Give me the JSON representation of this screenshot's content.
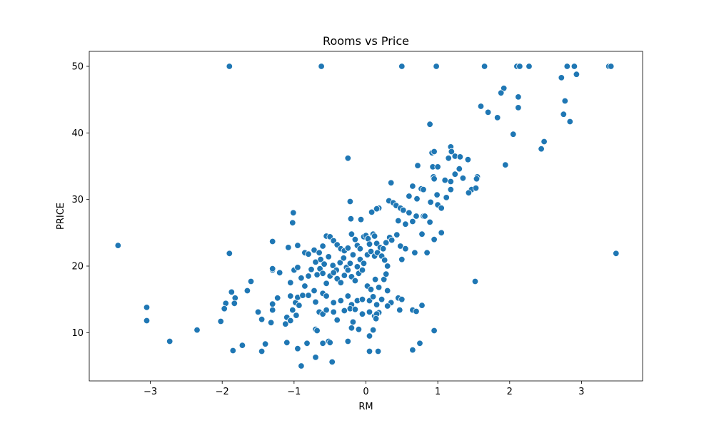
{
  "colors": {
    "point_fill": "#1f77b4",
    "point_edge": "#ffffff",
    "axes": "#000000",
    "background": "#ffffff"
  },
  "chart_data": {
    "type": "scatter",
    "title": "Rooms vs Price",
    "xlabel": "RM",
    "ylabel": "PRICE",
    "xlim": [
      -3.85,
      3.85
    ],
    "ylim": [
      2.75,
      52.25
    ],
    "xticks": [
      -3,
      -2,
      -1,
      0,
      1,
      2,
      3
    ],
    "yticks": [
      10,
      20,
      30,
      40,
      50
    ],
    "xtick_labels": [
      "−3",
      "−2",
      "−1",
      "0",
      "1",
      "2",
      "3"
    ],
    "ytick_labels": [
      "10",
      "20",
      "30",
      "40",
      "50"
    ],
    "grid": false,
    "legend": null,
    "series": [
      {
        "points": [
          [
            -1.9,
            50
          ],
          [
            -0.62,
            50
          ],
          [
            0.5,
            50
          ],
          [
            0.98,
            50
          ],
          [
            1.65,
            50
          ],
          [
            2.1,
            50
          ],
          [
            2.14,
            50
          ],
          [
            2.27,
            50
          ],
          [
            2.8,
            50
          ],
          [
            2.9,
            50
          ],
          [
            3.38,
            50
          ],
          [
            3.41,
            50
          ],
          [
            2.72,
            48.3
          ],
          [
            2.93,
            48.8
          ],
          [
            1.92,
            46.7
          ],
          [
            1.88,
            46.0
          ],
          [
            2.12,
            45.4
          ],
          [
            2.77,
            44.8
          ],
          [
            2.12,
            43.8
          ],
          [
            1.6,
            44.0
          ],
          [
            1.7,
            43.1
          ],
          [
            1.83,
            42.3
          ],
          [
            2.75,
            42.8
          ],
          [
            2.84,
            41.7
          ],
          [
            0.89,
            41.3
          ],
          [
            2.05,
            39.8
          ],
          [
            2.48,
            38.7
          ],
          [
            2.44,
            37.6
          ],
          [
            1.94,
            35.2
          ],
          [
            1.18,
            37.9
          ],
          [
            1.19,
            37.2
          ],
          [
            0.92,
            37.0
          ],
          [
            0.95,
            37.2
          ],
          [
            1.24,
            36.5
          ],
          [
            1.15,
            36.2
          ],
          [
            1.31,
            36.4
          ],
          [
            1.42,
            36.0
          ],
          [
            -0.25,
            36.2
          ],
          [
            0.72,
            35.1
          ],
          [
            0.93,
            34.9
          ],
          [
            1.0,
            34.9
          ],
          [
            1.3,
            34.6
          ],
          [
            1.24,
            33.8
          ],
          [
            1.55,
            33.4
          ],
          [
            1.54,
            33.1
          ],
          [
            1.35,
            33.2
          ],
          [
            1.1,
            32.9
          ],
          [
            0.94,
            33.4
          ],
          [
            0.95,
            33.1
          ],
          [
            1.18,
            32.7
          ],
          [
            0.35,
            32.5
          ],
          [
            0.65,
            32.0
          ],
          [
            0.77,
            31.6
          ],
          [
            0.8,
            31.5
          ],
          [
            1.47,
            31.5
          ],
          [
            1.53,
            31.7
          ],
          [
            1.43,
            31.0
          ],
          [
            1.18,
            31.5
          ],
          [
            0.6,
            30.5
          ],
          [
            0.71,
            30.1
          ],
          [
            0.99,
            30.7
          ],
          [
            0.9,
            29.6
          ],
          [
            1.12,
            30.3
          ],
          [
            0.32,
            29.8
          ],
          [
            0.38,
            29.5
          ],
          [
            0.42,
            29.1
          ],
          [
            0.48,
            28.7
          ],
          [
            0.52,
            28.4
          ],
          [
            0.6,
            28.0
          ],
          [
            0.18,
            28.7
          ],
          [
            -0.22,
            29.7
          ],
          [
            1.0,
            29.2
          ],
          [
            1.05,
            28.7
          ],
          [
            0.7,
            27.5
          ],
          [
            -1.01,
            28.0
          ],
          [
            -1.02,
            26.5
          ],
          [
            -0.21,
            27.1
          ],
          [
            -0.07,
            27.0
          ],
          [
            0.08,
            28.1
          ],
          [
            0.15,
            28.6
          ],
          [
            0.45,
            26.8
          ],
          [
            0.55,
            26.3
          ],
          [
            0.65,
            26.7
          ],
          [
            0.8,
            27.5
          ],
          [
            0.82,
            27.5
          ],
          [
            0.89,
            26.6
          ],
          [
            -1.3,
            23.7
          ],
          [
            -1.08,
            22.8
          ],
          [
            -0.95,
            23.1
          ],
          [
            -0.85,
            22.0
          ],
          [
            -0.8,
            21.8
          ],
          [
            -0.72,
            22.4
          ],
          [
            -0.65,
            22.0
          ],
          [
            -0.6,
            23.0
          ],
          [
            -0.55,
            24.5
          ],
          [
            -0.5,
            24.4
          ],
          [
            -0.45,
            23.8
          ],
          [
            -0.4,
            23.2
          ],
          [
            -0.35,
            22.6
          ],
          [
            -0.3,
            22.3
          ],
          [
            -0.25,
            22.7
          ],
          [
            -0.2,
            24.8
          ],
          [
            -0.15,
            24.0
          ],
          [
            -0.12,
            23.1
          ],
          [
            -0.08,
            22.6
          ],
          [
            -0.03,
            24.4
          ],
          [
            0.0,
            24.6
          ],
          [
            0.03,
            24.1
          ],
          [
            0.05,
            23.3
          ],
          [
            0.1,
            24.8
          ],
          [
            0.12,
            24.5
          ],
          [
            0.15,
            23.4
          ],
          [
            0.2,
            22.8
          ],
          [
            0.24,
            22.6
          ],
          [
            0.28,
            23.5
          ],
          [
            0.33,
            24.3
          ],
          [
            0.36,
            23.9
          ],
          [
            0.43,
            24.7
          ],
          [
            0.48,
            23.0
          ],
          [
            0.55,
            22.6
          ],
          [
            0.68,
            22.0
          ],
          [
            0.78,
            24.8
          ],
          [
            0.95,
            24.0
          ],
          [
            1.05,
            25.0
          ],
          [
            -0.7,
            20.6
          ],
          [
            -0.63,
            21.0
          ],
          [
            -0.58,
            20.3
          ],
          [
            -0.52,
            21.4
          ],
          [
            -0.46,
            20.1
          ],
          [
            -0.41,
            19.4
          ],
          [
            -0.36,
            20.5
          ],
          [
            -0.31,
            21.2
          ],
          [
            -0.27,
            19.8
          ],
          [
            -0.22,
            20.4
          ],
          [
            -0.18,
            21.7
          ],
          [
            -0.12,
            19.9
          ],
          [
            -0.08,
            21.0
          ],
          [
            -0.03,
            20.4
          ],
          [
            0.02,
            21.7
          ],
          [
            0.07,
            22.2
          ],
          [
            0.12,
            21.5
          ],
          [
            0.16,
            22.0
          ],
          [
            0.22,
            21.5
          ],
          [
            0.26,
            20.9
          ],
          [
            0.3,
            20.0
          ],
          [
            0.5,
            21.0
          ],
          [
            0.85,
            22.0
          ],
          [
            -1.9,
            21.9
          ],
          [
            -1.3,
            19.4
          ],
          [
            -1.3,
            19.6
          ],
          [
            -1.2,
            19.0
          ],
          [
            -1.05,
            17.5
          ],
          [
            -1.0,
            19.4
          ],
          [
            -0.95,
            19.8
          ],
          [
            -0.9,
            18.2
          ],
          [
            -0.85,
            17.0
          ],
          [
            -0.8,
            18.5
          ],
          [
            -0.76,
            19.5
          ],
          [
            -0.68,
            18.7
          ],
          [
            -0.64,
            19.6
          ],
          [
            -0.6,
            18.9
          ],
          [
            -0.55,
            17.4
          ],
          [
            -0.5,
            18.5
          ],
          [
            -0.45,
            19.0
          ],
          [
            -0.4,
            18.1
          ],
          [
            -0.35,
            17.5
          ],
          [
            -0.3,
            18.6
          ],
          [
            -0.25,
            19.4
          ],
          [
            -0.2,
            18.4
          ],
          [
            -0.15,
            17.8
          ],
          [
            -0.1,
            18.9
          ],
          [
            -0.05,
            19.4
          ],
          [
            0.02,
            17.0
          ],
          [
            0.07,
            16.5
          ],
          [
            0.13,
            18.0
          ],
          [
            0.18,
            16.8
          ],
          [
            0.25,
            18.0
          ],
          [
            0.28,
            18.8
          ],
          [
            1.52,
            17.7
          ],
          [
            -1.6,
            17.7
          ],
          [
            -1.65,
            16.3
          ],
          [
            -1.87,
            16.1
          ],
          [
            -1.82,
            15.2
          ],
          [
            -1.23,
            15.2
          ],
          [
            -1.05,
            15.5
          ],
          [
            -0.98,
            14.5
          ],
          [
            -0.95,
            15.3
          ],
          [
            -0.88,
            15.6
          ],
          [
            -0.8,
            15.6
          ],
          [
            -0.72,
            16.3
          ],
          [
            -0.6,
            15.9
          ],
          [
            -0.55,
            15.5
          ],
          [
            -0.45,
            14.5
          ],
          [
            -0.35,
            14.8
          ],
          [
            -0.25,
            15.5
          ],
          [
            -0.2,
            14.2
          ],
          [
            -0.12,
            14.8
          ],
          [
            -0.05,
            15.0
          ],
          [
            0.05,
            14.8
          ],
          [
            0.1,
            15.4
          ],
          [
            0.15,
            14.2
          ],
          [
            0.22,
            15.0
          ],
          [
            0.3,
            16.3
          ],
          [
            0.35,
            14.5
          ],
          [
            0.45,
            15.2
          ],
          [
            -1.95,
            14.4
          ],
          [
            -1.83,
            14.4
          ],
          [
            -1.97,
            13.6
          ],
          [
            -1.5,
            13.1
          ],
          [
            -1.3,
            14.3
          ],
          [
            -1.3,
            13.4
          ],
          [
            -1.1,
            12.3
          ],
          [
            -1.02,
            13.4
          ],
          [
            -0.97,
            12.6
          ],
          [
            -0.93,
            14.1
          ],
          [
            -0.7,
            14.6
          ],
          [
            -0.65,
            13.1
          ],
          [
            -0.6,
            12.8
          ],
          [
            -0.55,
            13.4
          ],
          [
            -0.45,
            13.1
          ],
          [
            -0.3,
            13.3
          ],
          [
            -0.22,
            13.6
          ],
          [
            -0.15,
            13.5
          ],
          [
            -0.05,
            12.8
          ],
          [
            0.05,
            13.1
          ],
          [
            0.12,
            12.5
          ],
          [
            0.18,
            13.0
          ],
          [
            0.3,
            14.0
          ],
          [
            0.47,
            13.4
          ],
          [
            0.5,
            15.0
          ],
          [
            0.65,
            13.4
          ],
          [
            0.7,
            13.2
          ],
          [
            0.78,
            14.1
          ],
          [
            -3.05,
            13.8
          ],
          [
            -3.05,
            11.8
          ],
          [
            -2.02,
            11.7
          ],
          [
            -1.45,
            12.0
          ],
          [
            -1.32,
            11.5
          ],
          [
            -1.12,
            11.3
          ],
          [
            -1.05,
            11.8
          ],
          [
            -0.7,
            10.5
          ],
          [
            -0.68,
            10.3
          ],
          [
            -0.4,
            11.9
          ],
          [
            -0.18,
            11.6
          ],
          [
            -0.2,
            10.7
          ],
          [
            -0.1,
            10.5
          ],
          [
            0.15,
            12.8
          ],
          [
            0.14,
            12.1
          ],
          [
            0.1,
            10.4
          ],
          [
            0.05,
            9.5
          ],
          [
            0.95,
            10.3
          ],
          [
            -2.35,
            10.4
          ],
          [
            -2.73,
            8.7
          ],
          [
            -1.72,
            8.1
          ],
          [
            -1.4,
            8.3
          ],
          [
            -1.1,
            8.5
          ],
          [
            -0.95,
            7.6
          ],
          [
            -0.82,
            8.4
          ],
          [
            -0.6,
            8.4
          ],
          [
            -0.52,
            8.7
          ],
          [
            -0.5,
            8.5
          ],
          [
            -0.25,
            8.7
          ],
          [
            0.05,
            7.2
          ],
          [
            0.17,
            7.2
          ],
          [
            0.65,
            7.4
          ],
          [
            0.75,
            8.4
          ],
          [
            -1.85,
            7.3
          ],
          [
            -1.45,
            7.2
          ],
          [
            -0.9,
            5.0
          ],
          [
            -0.47,
            5.6
          ],
          [
            -0.7,
            6.3
          ],
          [
            -3.45,
            23.1
          ],
          [
            3.48,
            21.9
          ]
        ]
      }
    ]
  }
}
